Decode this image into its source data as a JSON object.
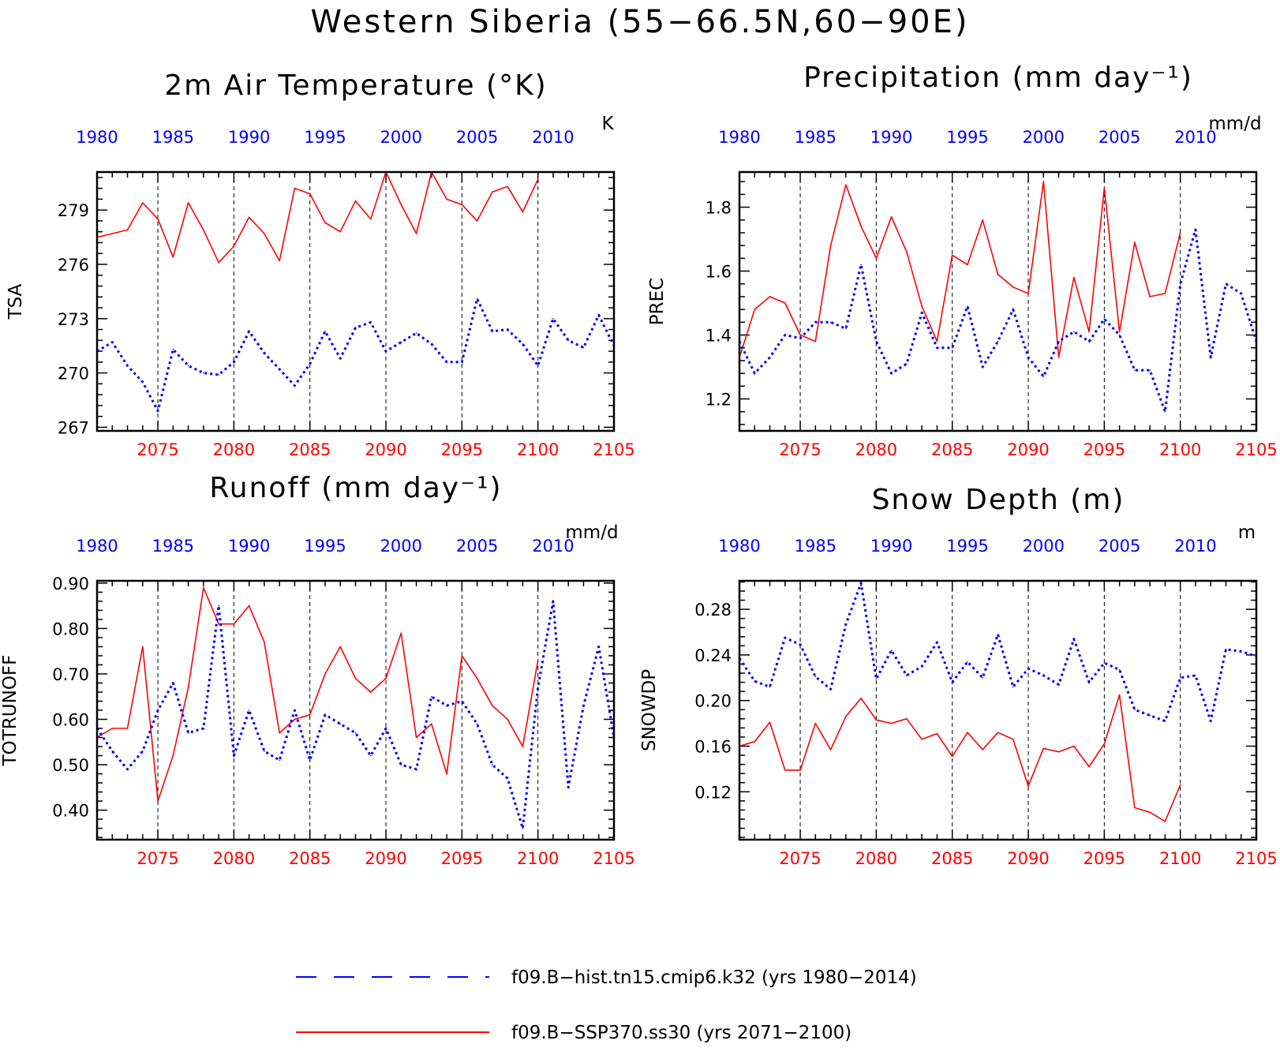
{
  "title": "Western Siberia (55−66.5N,60−90E)",
  "colors": {
    "hist": "#0000ff",
    "ssp": "#ff0000",
    "axis": "#000000"
  },
  "legend": {
    "hist": "f09.B−hist.tn15.cmip6.k32 (yrs 1980−2014)",
    "ssp": "f09.B−SSP370.ss30 (yrs 2071−2100)"
  },
  "chart_data": [
    {
      "type": "line",
      "title": "2m Air Temperature (°K)",
      "ylabel": "TSA",
      "unit": "K",
      "ylim": [
        266.8,
        281.1
      ],
      "yticks": [
        267,
        270,
        273,
        276,
        279
      ],
      "ytick_labels": [
        "267",
        "270",
        "273",
        "276",
        "279"
      ],
      "x_top_ticks": [
        "1980",
        "1985",
        "1990",
        "1995",
        "2000",
        "2005",
        "2010"
      ],
      "x_bottom_ticks": [
        "2075",
        "2080",
        "2085",
        "2090",
        "2095",
        "2100",
        "2105"
      ],
      "series": [
        {
          "key": "ssp",
          "x": [
            2071,
            2072,
            2073,
            2074,
            2075,
            2076,
            2077,
            2078,
            2079,
            2080,
            2081,
            2082,
            2083,
            2084,
            2085,
            2086,
            2087,
            2088,
            2089,
            2090,
            2091,
            2092,
            2093,
            2094,
            2095,
            2096,
            2097,
            2098,
            2099,
            2100
          ],
          "values": [
            277.5,
            277.7,
            277.9,
            279.4,
            278.5,
            276.4,
            279.4,
            277.9,
            276.1,
            277.0,
            278.6,
            277.7,
            276.2,
            280.2,
            279.9,
            278.3,
            277.8,
            279.5,
            278.5,
            281.1,
            279.3,
            277.7,
            281.1,
            279.6,
            279.3,
            278.4,
            280.0,
            280.3,
            278.9,
            280.7
          ]
        },
        {
          "key": "hist",
          "x": [
            2071,
            2072,
            2073,
            2074,
            2075,
            2076,
            2077,
            2078,
            2079,
            2080,
            2081,
            2082,
            2083,
            2084,
            2085,
            2086,
            2087,
            2088,
            2089,
            2090,
            2091,
            2092,
            2093,
            2094,
            2095,
            2096,
            2097,
            2098,
            2099,
            2100,
            2101,
            2102,
            2103,
            2104,
            2105
          ],
          "values": [
            271.2,
            271.7,
            270.4,
            269.5,
            267.9,
            271.3,
            270.4,
            270.0,
            269.9,
            270.6,
            272.3,
            271.1,
            270.2,
            269.3,
            270.5,
            272.3,
            270.8,
            272.5,
            272.8,
            271.2,
            271.7,
            272.2,
            271.6,
            270.6,
            270.6,
            274.1,
            272.3,
            272.4,
            271.6,
            270.4,
            273.0,
            271.8,
            271.4,
            273.2,
            271.5
          ]
        }
      ]
    },
    {
      "type": "line",
      "title": "Precipitation (mm day⁻¹)",
      "ylabel": "PREC",
      "unit": "mm/d",
      "ylim": [
        1.1,
        1.91
      ],
      "yticks": [
        1.2,
        1.4,
        1.6,
        1.8
      ],
      "ytick_labels": [
        "1.2",
        "1.4",
        "1.6",
        "1.8"
      ],
      "x_top_ticks": [
        "1980",
        "1985",
        "1990",
        "1995",
        "2000",
        "2005",
        "2010"
      ],
      "x_bottom_ticks": [
        "2075",
        "2080",
        "2085",
        "2090",
        "2095",
        "2100",
        "2105"
      ],
      "series": [
        {
          "key": "ssp",
          "x": [
            2071,
            2072,
            2073,
            2074,
            2075,
            2076,
            2077,
            2078,
            2079,
            2080,
            2081,
            2082,
            2083,
            2084,
            2085,
            2086,
            2087,
            2088,
            2089,
            2090,
            2091,
            2092,
            2093,
            2094,
            2095,
            2096,
            2097,
            2098,
            2099,
            2100
          ],
          "values": [
            1.33,
            1.48,
            1.52,
            1.5,
            1.4,
            1.38,
            1.68,
            1.87,
            1.74,
            1.64,
            1.77,
            1.66,
            1.49,
            1.38,
            1.65,
            1.62,
            1.76,
            1.59,
            1.55,
            1.53,
            1.88,
            1.33,
            1.58,
            1.41,
            1.86,
            1.41,
            1.69,
            1.52,
            1.53,
            1.72
          ]
        },
        {
          "key": "hist",
          "x": [
            2071,
            2072,
            2073,
            2074,
            2075,
            2076,
            2077,
            2078,
            2079,
            2080,
            2081,
            2082,
            2083,
            2084,
            2085,
            2086,
            2087,
            2088,
            2089,
            2090,
            2091,
            2092,
            2093,
            2094,
            2095,
            2096,
            2097,
            2098,
            2099,
            2100,
            2101,
            2102,
            2103,
            2104,
            2105
          ],
          "values": [
            1.38,
            1.28,
            1.33,
            1.4,
            1.39,
            1.44,
            1.44,
            1.42,
            1.62,
            1.38,
            1.28,
            1.31,
            1.47,
            1.36,
            1.36,
            1.49,
            1.3,
            1.38,
            1.48,
            1.33,
            1.27,
            1.38,
            1.41,
            1.38,
            1.45,
            1.4,
            1.29,
            1.29,
            1.16,
            1.56,
            1.73,
            1.33,
            1.56,
            1.53,
            1.38
          ]
        }
      ]
    },
    {
      "type": "line",
      "title": "Runoff (mm day⁻¹)",
      "ylabel": "TOTRUNOFF",
      "unit": "mm/d",
      "ylim": [
        0.335,
        0.905
      ],
      "yticks": [
        0.4,
        0.5,
        0.6,
        0.7,
        0.8,
        0.9
      ],
      "ytick_labels": [
        "0.40",
        "0.50",
        "0.60",
        "0.70",
        "0.80",
        "0.90"
      ],
      "x_top_ticks": [
        "1980",
        "1985",
        "1990",
        "1995",
        "2000",
        "2005",
        "2010"
      ],
      "x_bottom_ticks": [
        "2075",
        "2080",
        "2085",
        "2090",
        "2095",
        "2100",
        "2105"
      ],
      "series": [
        {
          "key": "ssp",
          "x": [
            2071,
            2072,
            2073,
            2074,
            2075,
            2076,
            2077,
            2078,
            2079,
            2080,
            2081,
            2082,
            2083,
            2084,
            2085,
            2086,
            2087,
            2088,
            2089,
            2090,
            2091,
            2092,
            2093,
            2094,
            2095,
            2096,
            2097,
            2098,
            2099,
            2100
          ],
          "values": [
            0.56,
            0.58,
            0.58,
            0.76,
            0.42,
            0.52,
            0.67,
            0.89,
            0.81,
            0.81,
            0.85,
            0.77,
            0.57,
            0.6,
            0.61,
            0.7,
            0.76,
            0.69,
            0.66,
            0.69,
            0.79,
            0.56,
            0.59,
            0.48,
            0.74,
            0.69,
            0.63,
            0.6,
            0.54,
            0.73
          ]
        },
        {
          "key": "hist",
          "x": [
            2071,
            2072,
            2073,
            2074,
            2075,
            2076,
            2077,
            2078,
            2079,
            2080,
            2081,
            2082,
            2083,
            2084,
            2085,
            2086,
            2087,
            2088,
            2089,
            2090,
            2091,
            2092,
            2093,
            2094,
            2095,
            2096,
            2097,
            2098,
            2099,
            2100,
            2101,
            2102,
            2103,
            2104,
            2105
          ],
          "values": [
            0.58,
            0.53,
            0.49,
            0.53,
            0.62,
            0.68,
            0.57,
            0.58,
            0.85,
            0.52,
            0.62,
            0.53,
            0.51,
            0.62,
            0.51,
            0.61,
            0.59,
            0.57,
            0.52,
            0.58,
            0.5,
            0.49,
            0.65,
            0.63,
            0.64,
            0.59,
            0.5,
            0.47,
            0.36,
            0.67,
            0.86,
            0.45,
            0.63,
            0.76,
            0.56
          ]
        }
      ]
    },
    {
      "type": "line",
      "title": "Snow Depth (m)",
      "ylabel": "SNOWDP",
      "unit": "m",
      "ylim": [
        0.078,
        0.305
      ],
      "yticks": [
        0.12,
        0.16,
        0.2,
        0.24,
        0.28
      ],
      "ytick_labels": [
        "0.12",
        "0.16",
        "0.20",
        "0.24",
        "0.28"
      ],
      "x_top_ticks": [
        "1980",
        "1985",
        "1990",
        "1995",
        "2000",
        "2005",
        "2010"
      ],
      "x_bottom_ticks": [
        "2075",
        "2080",
        "2085",
        "2090",
        "2095",
        "2100",
        "2105"
      ],
      "series": [
        {
          "key": "ssp",
          "x": [
            2071,
            2072,
            2073,
            2074,
            2075,
            2076,
            2077,
            2078,
            2079,
            2080,
            2081,
            2082,
            2083,
            2084,
            2085,
            2086,
            2087,
            2088,
            2089,
            2090,
            2091,
            2092,
            2093,
            2094,
            2095,
            2096,
            2097,
            2098,
            2099,
            2100
          ],
          "values": [
            0.16,
            0.164,
            0.181,
            0.139,
            0.139,
            0.18,
            0.157,
            0.186,
            0.202,
            0.183,
            0.18,
            0.184,
            0.166,
            0.171,
            0.151,
            0.172,
            0.157,
            0.172,
            0.166,
            0.125,
            0.158,
            0.155,
            0.16,
            0.142,
            0.162,
            0.205,
            0.106,
            0.102,
            0.094,
            0.126
          ]
        },
        {
          "key": "hist",
          "x": [
            2071,
            2072,
            2073,
            2074,
            2075,
            2076,
            2077,
            2078,
            2079,
            2080,
            2081,
            2082,
            2083,
            2084,
            2085,
            2086,
            2087,
            2088,
            2089,
            2090,
            2091,
            2092,
            2093,
            2094,
            2095,
            2096,
            2097,
            2098,
            2099,
            2100,
            2101,
            2102,
            2103,
            2104,
            2105
          ],
          "values": [
            0.237,
            0.217,
            0.212,
            0.255,
            0.249,
            0.221,
            0.21,
            0.267,
            0.303,
            0.219,
            0.244,
            0.222,
            0.23,
            0.251,
            0.216,
            0.234,
            0.22,
            0.258,
            0.212,
            0.228,
            0.222,
            0.214,
            0.254,
            0.216,
            0.233,
            0.227,
            0.192,
            0.187,
            0.182,
            0.22,
            0.222,
            0.182,
            0.245,
            0.243,
            0.239
          ]
        }
      ]
    }
  ]
}
